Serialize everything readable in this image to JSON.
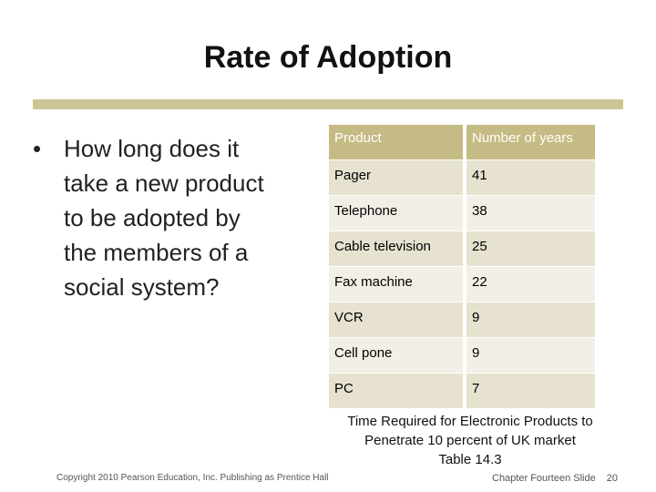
{
  "slide": {
    "title": "Rate of Adoption",
    "bullet": "How long does it take a new product to be adopted by the members of a social system?",
    "bullet_marker": "•"
  },
  "table": {
    "headers": [
      "Product",
      "Number of years"
    ],
    "rows": [
      [
        "Pager",
        "41"
      ],
      [
        "Telephone",
        "38"
      ],
      [
        "Cable television",
        "25"
      ],
      [
        "Fax machine",
        "22"
      ],
      [
        "VCR",
        "9"
      ],
      [
        "Cell pone",
        "9"
      ],
      [
        "PC",
        "7"
      ]
    ]
  },
  "caption": {
    "line1": "Time Required for Electronic Products to",
    "line2": "Penetrate 10 percent of UK market",
    "line3": "Table 14.3"
  },
  "footer": {
    "copyright": "Copyright 2010 Pearson Education, Inc. Publishing as Prentice Hall",
    "chapter": "Chapter Fourteen Slide",
    "slide_number": "20"
  },
  "colors": {
    "accent_rule": "#cdc596",
    "header_fill": "#c5bb84",
    "row_odd": "#e6e2cf",
    "row_even": "#f2f0e6"
  }
}
